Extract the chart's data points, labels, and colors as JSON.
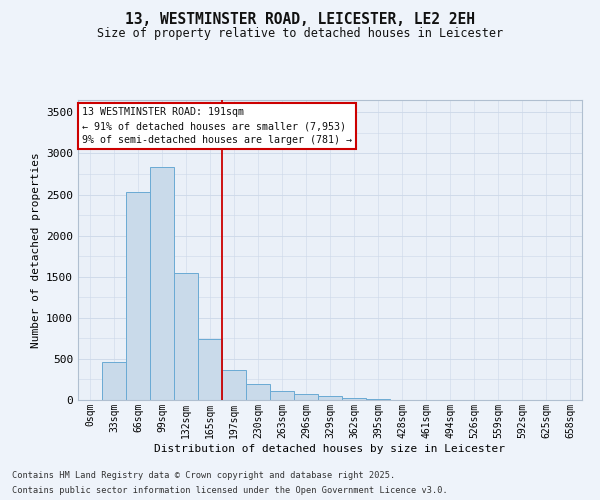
{
  "title_line1": "13, WESTMINSTER ROAD, LEICESTER, LE2 2EH",
  "title_line2": "Size of property relative to detached houses in Leicester",
  "xlabel": "Distribution of detached houses by size in Leicester",
  "ylabel": "Number of detached properties",
  "bar_color": "#c9daea",
  "bar_edge_color": "#6aaad4",
  "grid_color": "#ccd8e8",
  "bg_color": "#eaf0f8",
  "annotation_box_color": "#cc0000",
  "vline_color": "#cc0000",
  "categories": [
    "0sqm",
    "33sqm",
    "66sqm",
    "99sqm",
    "132sqm",
    "165sqm",
    "197sqm",
    "230sqm",
    "263sqm",
    "296sqm",
    "329sqm",
    "362sqm",
    "395sqm",
    "428sqm",
    "461sqm",
    "494sqm",
    "526sqm",
    "559sqm",
    "592sqm",
    "625sqm",
    "658sqm"
  ],
  "bar_values": [
    0,
    460,
    2530,
    2840,
    1540,
    740,
    370,
    200,
    115,
    70,
    50,
    25,
    10,
    5,
    5,
    0,
    0,
    0,
    0,
    0,
    0
  ],
  "ylim": [
    0,
    3650
  ],
  "yticks": [
    0,
    500,
    1000,
    1500,
    2000,
    2500,
    3000,
    3500
  ],
  "property_label": "13 WESTMINSTER ROAD: 191sqm",
  "pct_smaller": "91% of detached houses are smaller (7,953)",
  "pct_larger": "9% of semi-detached houses are larger (781)",
  "vline_x_index": 6,
  "footnote1": "Contains HM Land Registry data © Crown copyright and database right 2025.",
  "footnote2": "Contains public sector information licensed under the Open Government Licence v3.0.",
  "fig_bg": "#eef3fa"
}
